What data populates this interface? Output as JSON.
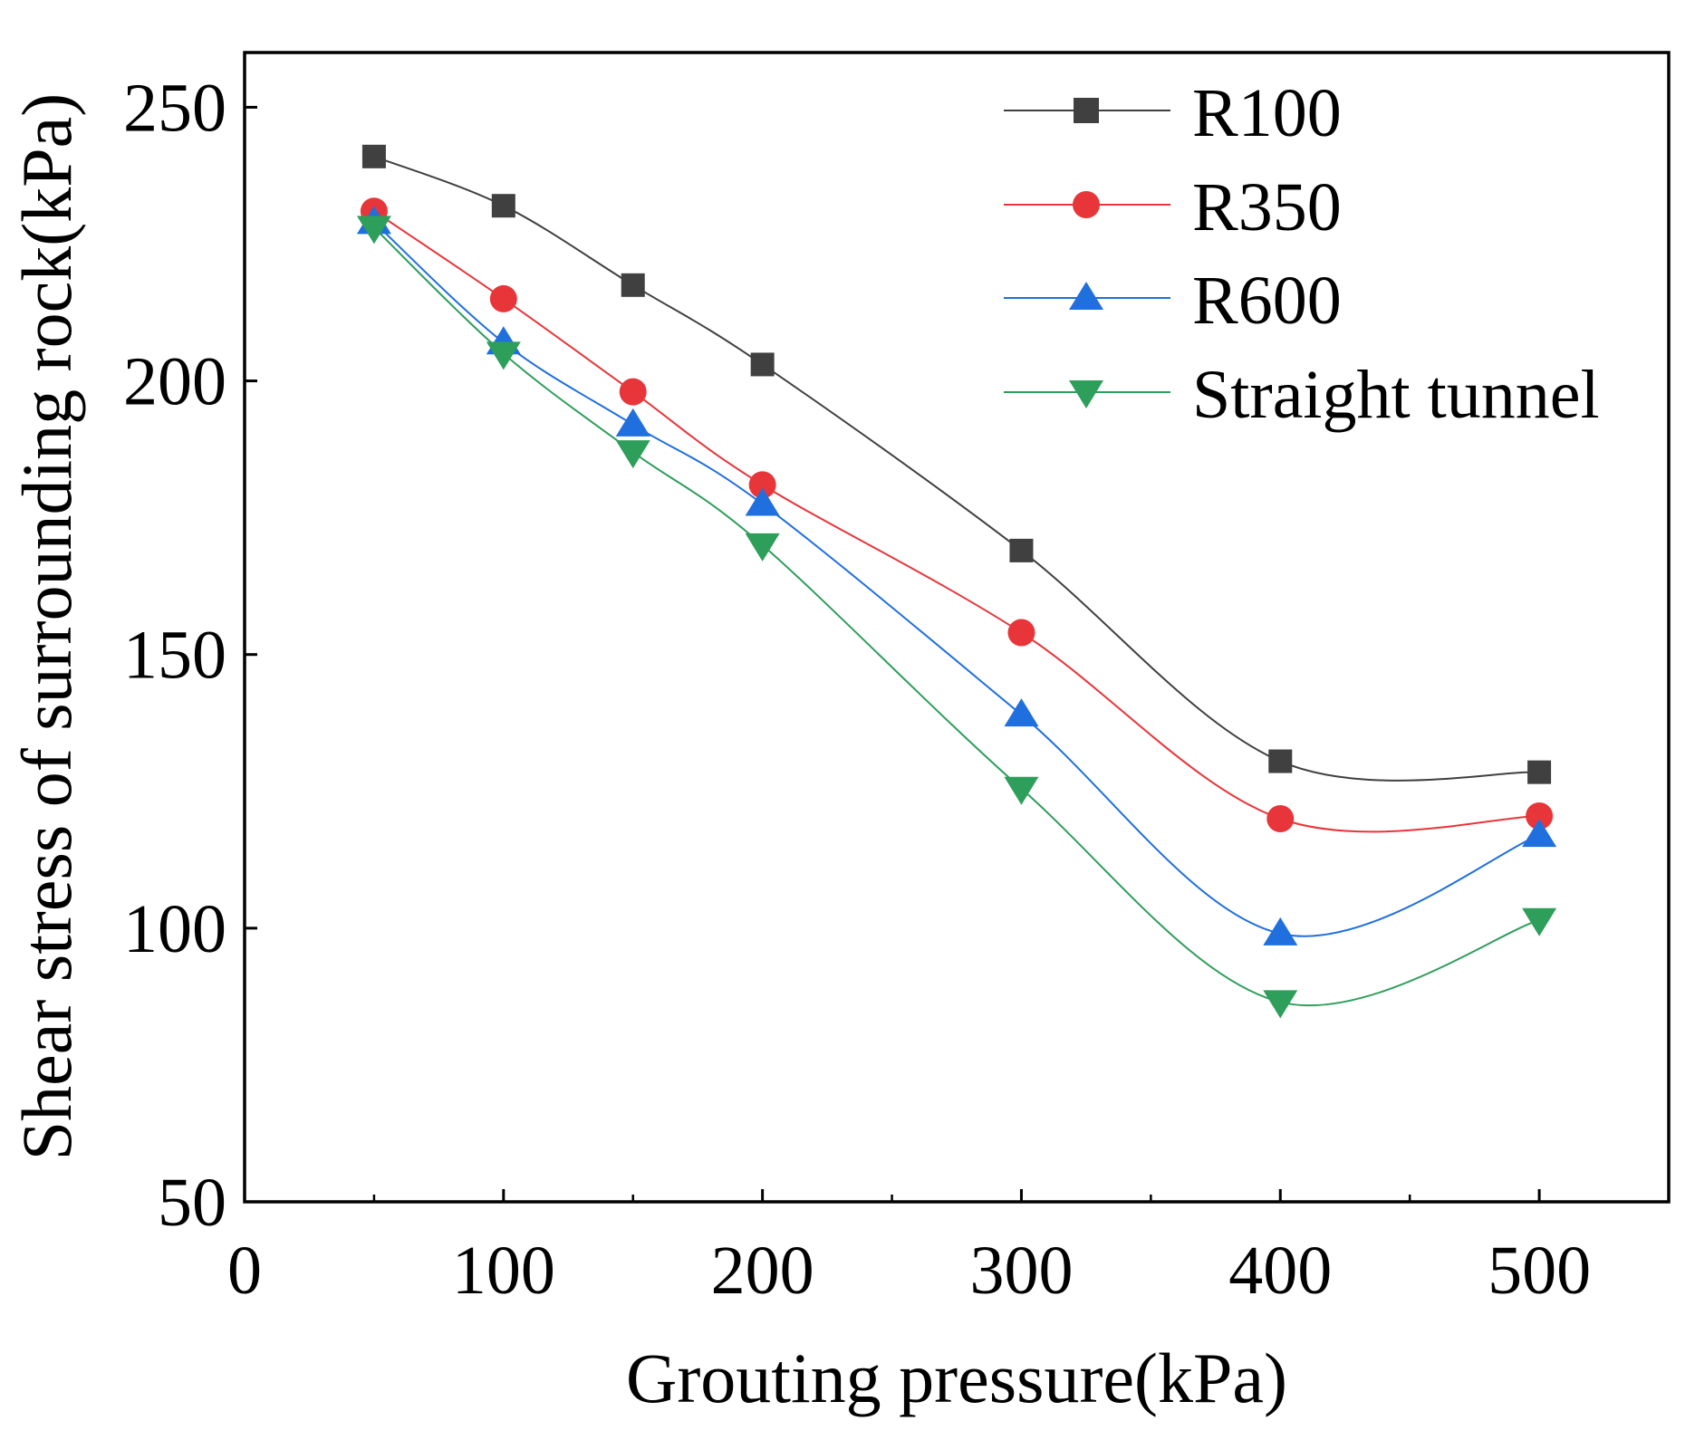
{
  "chart_data": {
    "type": "line",
    "title": "",
    "xlabel": "Grouting pressure(kPa)",
    "ylabel": "Shear stress of surrounding rock(kPa)",
    "xlim": [
      0,
      550
    ],
    "ylim": [
      50,
      260
    ],
    "xticks": [
      0,
      100,
      200,
      300,
      400,
      500
    ],
    "xtick_labels": [
      "0",
      "100",
      "200",
      "300",
      "400",
      "500"
    ],
    "yticks": [
      50,
      100,
      150,
      200,
      250
    ],
    "ytick_labels": [
      "50",
      "100",
      "150",
      "200",
      "250"
    ],
    "grid": false,
    "legend_position": "top-right",
    "x": [
      50,
      100,
      150,
      200,
      300,
      400,
      500
    ],
    "series": [
      {
        "name": "R100",
        "color": "#404040",
        "marker": "square",
        "values": [
          241,
          232,
          217.5,
          203,
          169,
          130.5,
          128.5
        ]
      },
      {
        "name": "R350",
        "color": "#e8353a",
        "marker": "circle",
        "values": [
          231,
          215,
          198,
          181,
          154,
          120,
          120.5
        ]
      },
      {
        "name": "R600",
        "color": "#1f6fde",
        "marker": "triangle-up",
        "values": [
          229,
          207,
          192,
          177.5,
          139,
          99,
          117
        ]
      },
      {
        "name": "Straight tunnel",
        "color": "#2e9e5b",
        "marker": "triangle-down",
        "values": [
          228,
          205,
          187,
          170,
          125.5,
          86.5,
          101.5
        ]
      }
    ]
  }
}
